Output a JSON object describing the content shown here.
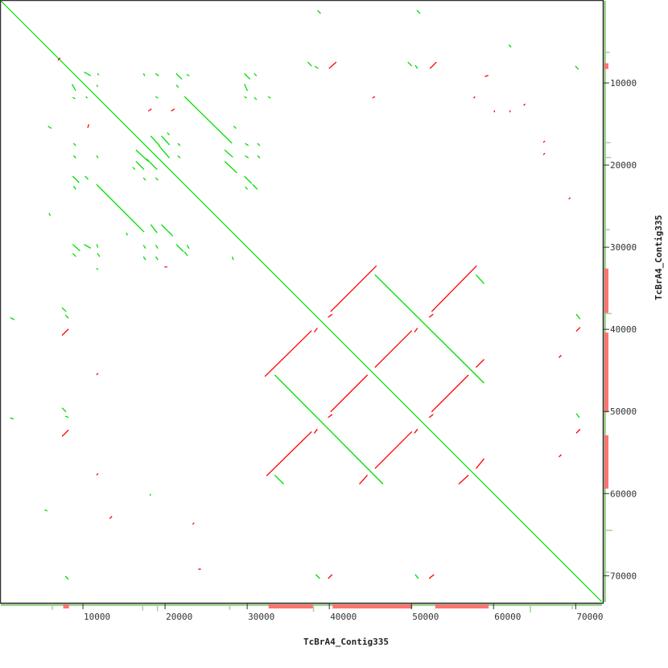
{
  "chart_data": {
    "type": "scatter",
    "subtype": "dot-plot",
    "xlabel": "TcBrA4_Contig335",
    "ylabel": "TcBrA4_Contig335",
    "xlim": [
      0,
      73200
    ],
    "ylim": [
      0,
      73200
    ],
    "y_inverted": true,
    "grid": false,
    "xticks": [
      10000,
      20000,
      30000,
      40000,
      50000,
      60000,
      70000
    ],
    "yticks": [
      10000,
      20000,
      30000,
      40000,
      50000,
      60000,
      70000
    ],
    "colors": {
      "forward": "#00dd00",
      "reverse": "#ff0000",
      "coverage_forward": "#a2d595",
      "coverage_reverse": "#ff7373",
      "frame": "#333333"
    },
    "forward_segments": [
      [
        0,
        0,
        73100,
        73100
      ],
      [
        45600,
        33400,
        58800,
        46500
      ],
      [
        33400,
        45600,
        46500,
        58800
      ],
      [
        57900,
        33400,
        58800,
        34400
      ],
      [
        33400,
        57800,
        34400,
        58800
      ],
      [
        22400,
        11700,
        28100,
        17300
      ],
      [
        11700,
        22400,
        17400,
        28100
      ],
      [
        10200,
        8700,
        10900,
        9100
      ],
      [
        11800,
        8900,
        11900,
        9000
      ],
      [
        17400,
        8900,
        17500,
        9100
      ],
      [
        18900,
        8900,
        19200,
        9100
      ],
      [
        21400,
        8900,
        22000,
        9500
      ],
      [
        22700,
        9000,
        22900,
        9100
      ],
      [
        29700,
        8900,
        30300,
        9500
      ],
      [
        30900,
        8900,
        31100,
        9100
      ],
      [
        8700,
        10200,
        9100,
        10900
      ],
      [
        11700,
        10300,
        11800,
        10400
      ],
      [
        21400,
        10300,
        21600,
        10500
      ],
      [
        29700,
        10200,
        30000,
        10900
      ],
      [
        8800,
        11800,
        9000,
        11900
      ],
      [
        10400,
        11700,
        10500,
        11800
      ],
      [
        18900,
        11700,
        19100,
        11800
      ],
      [
        29700,
        11700,
        29900,
        11800
      ],
      [
        30900,
        11800,
        31100,
        12000
      ],
      [
        32600,
        11700,
        32800,
        11800
      ],
      [
        5800,
        15300,
        6100,
        15500
      ],
      [
        18300,
        16500,
        19300,
        17600
      ],
      [
        19600,
        16500,
        20500,
        17500
      ],
      [
        16500,
        18200,
        17900,
        19500
      ],
      [
        19300,
        17700,
        20500,
        19100
      ],
      [
        16500,
        19600,
        17400,
        20500
      ],
      [
        17800,
        19300,
        19000,
        20500
      ],
      [
        16100,
        20300,
        16300,
        20500
      ],
      [
        20300,
        16100,
        20500,
        16300
      ],
      [
        27300,
        18200,
        28200,
        19000
      ],
      [
        27300,
        19600,
        28700,
        20900
      ],
      [
        28400,
        15300,
        28600,
        15500
      ],
      [
        29800,
        17400,
        30100,
        17600
      ],
      [
        31300,
        17400,
        31500,
        17600
      ],
      [
        29800,
        18900,
        30100,
        19100
      ],
      [
        31300,
        18900,
        31500,
        19100
      ],
      [
        29700,
        21400,
        30500,
        22200
      ],
      [
        29800,
        22700,
        30000,
        22900
      ],
      [
        30700,
        22400,
        31200,
        22900
      ],
      [
        8900,
        17400,
        9100,
        17600
      ],
      [
        8900,
        18900,
        9100,
        19100
      ],
      [
        11700,
        18900,
        11800,
        19100
      ],
      [
        21600,
        17400,
        21800,
        17600
      ],
      [
        21600,
        18900,
        21800,
        19100
      ],
      [
        8800,
        21400,
        9500,
        22100
      ],
      [
        8900,
        22600,
        9100,
        22900
      ],
      [
        10300,
        21400,
        10600,
        21700
      ],
      [
        17400,
        21600,
        17600,
        21800
      ],
      [
        18900,
        21600,
        19100,
        21800
      ],
      [
        5900,
        25900,
        6000,
        26100
      ],
      [
        18300,
        27300,
        19000,
        28200
      ],
      [
        19600,
        27300,
        20900,
        28600
      ],
      [
        15300,
        28300,
        15400,
        28500
      ],
      [
        8800,
        29700,
        9600,
        30400
      ],
      [
        10200,
        29700,
        10900,
        30100
      ],
      [
        11700,
        29700,
        11800,
        30000
      ],
      [
        17400,
        29800,
        17600,
        30100
      ],
      [
        18900,
        29800,
        19100,
        30100
      ],
      [
        21400,
        29700,
        22200,
        30500
      ],
      [
        22700,
        29800,
        22900,
        30100
      ],
      [
        8800,
        30800,
        9100,
        31100
      ],
      [
        11800,
        30800,
        12000,
        31100
      ],
      [
        17400,
        31200,
        17600,
        31500
      ],
      [
        18900,
        31200,
        19100,
        31500
      ],
      [
        22400,
        30600,
        22700,
        31000
      ],
      [
        28200,
        31200,
        28300,
        31500
      ],
      [
        11700,
        32600,
        11800,
        32700
      ],
      [
        38600,
        1200,
        38900,
        1500
      ],
      [
        50700,
        1200,
        51000,
        1500
      ],
      [
        37400,
        7500,
        37800,
        7900
      ],
      [
        38300,
        8000,
        38600,
        8200
      ],
      [
        49600,
        7500,
        50000,
        7900
      ],
      [
        50500,
        7900,
        50700,
        8200
      ],
      [
        61900,
        5400,
        62100,
        5600
      ],
      [
        70000,
        8000,
        70300,
        8300
      ],
      [
        7500,
        37400,
        7900,
        37800
      ],
      [
        7900,
        38300,
        8200,
        38600
      ],
      [
        1200,
        38600,
        1600,
        38800
      ],
      [
        7500,
        49600,
        7900,
        50000
      ],
      [
        7900,
        50600,
        8200,
        50700
      ],
      [
        1200,
        50800,
        1500,
        50900
      ],
      [
        5400,
        62000,
        5600,
        62100
      ],
      [
        7900,
        70100,
        8200,
        70400
      ],
      [
        70100,
        38200,
        70500,
        38700
      ],
      [
        70100,
        50300,
        70400,
        50700
      ],
      [
        38400,
        69900,
        38800,
        70300
      ],
      [
        50500,
        69900,
        50800,
        70300
      ],
      [
        18200,
        60100,
        18200,
        60200
      ]
    ],
    "reverse_segments": [
      [
        32200,
        45700,
        37800,
        40200
      ],
      [
        40200,
        37800,
        45700,
        32300
      ],
      [
        39900,
        38500,
        40300,
        38200
      ],
      [
        38200,
        40300,
        38500,
        39900
      ],
      [
        52500,
        37800,
        57900,
        32300
      ],
      [
        52200,
        38500,
        52600,
        38200
      ],
      [
        45600,
        44600,
        50000,
        40200
      ],
      [
        50400,
        40300,
        50700,
        39900
      ],
      [
        40200,
        50000,
        44600,
        45600
      ],
      [
        39900,
        50700,
        40300,
        50400
      ],
      [
        52500,
        50000,
        56900,
        45600
      ],
      [
        57900,
        44600,
        58800,
        43700
      ],
      [
        32400,
        57800,
        37800,
        52500
      ],
      [
        38200,
        52600,
        38500,
        52200
      ],
      [
        45600,
        56900,
        50000,
        52500
      ],
      [
        50400,
        52600,
        50700,
        52200
      ],
      [
        52200,
        50700,
        52600,
        50400
      ],
      [
        57900,
        56900,
        58800,
        55800
      ],
      [
        43700,
        58800,
        44600,
        57800
      ],
      [
        55800,
        58800,
        56900,
        57800
      ],
      [
        7000,
        7200,
        7200,
        7000
      ],
      [
        18000,
        13400,
        18300,
        13200
      ],
      [
        20800,
        13400,
        21100,
        13200
      ],
      [
        10600,
        15400,
        10700,
        15100
      ],
      [
        20000,
        32400,
        20200,
        32400
      ],
      [
        40000,
        8200,
        40800,
        7500
      ],
      [
        52300,
        8200,
        53000,
        7500
      ],
      [
        45300,
        11800,
        45500,
        11700
      ],
      [
        57600,
        11800,
        57700,
        11700
      ],
      [
        59000,
        9200,
        59300,
        9100
      ],
      [
        63700,
        12700,
        63800,
        12600
      ],
      [
        60100,
        13400,
        60100,
        13500
      ],
      [
        62000,
        13400,
        62000,
        13500
      ],
      [
        66100,
        17200,
        66200,
        17100
      ],
      [
        66100,
        18700,
        66200,
        18600
      ],
      [
        7500,
        40700,
        8200,
        40000
      ],
      [
        7500,
        53000,
        8200,
        52300
      ],
      [
        11700,
        45500,
        11800,
        45400
      ],
      [
        11700,
        57700,
        11800,
        57600
      ],
      [
        13300,
        63000,
        13500,
        62800
      ],
      [
        23400,
        63700,
        23500,
        63600
      ],
      [
        24100,
        69200,
        24300,
        69200
      ],
      [
        70100,
        40200,
        70500,
        39800
      ],
      [
        70100,
        52600,
        70500,
        52200
      ],
      [
        68000,
        43400,
        68200,
        43200
      ],
      [
        68000,
        55500,
        68200,
        55300
      ],
      [
        69200,
        24100,
        69300,
        24000
      ],
      [
        39900,
        70300,
        40300,
        69900
      ],
      [
        52200,
        70300,
        52700,
        69900
      ]
    ],
    "coverage": {
      "reverse_ranges": [
        [
          7600,
          8300
        ],
        [
          32600,
          38000
        ],
        [
          40400,
          50100
        ],
        [
          52900,
          59400
        ]
      ],
      "forward_peaks": [
        [
          6200,
          0.6
        ],
        [
          17200,
          0.7
        ],
        [
          19000,
          0.8
        ],
        [
          27800,
          0.6
        ],
        [
          38000,
          0.9
        ],
        [
          64400,
          1.0
        ],
        [
          69500,
          0.5
        ]
      ]
    }
  }
}
